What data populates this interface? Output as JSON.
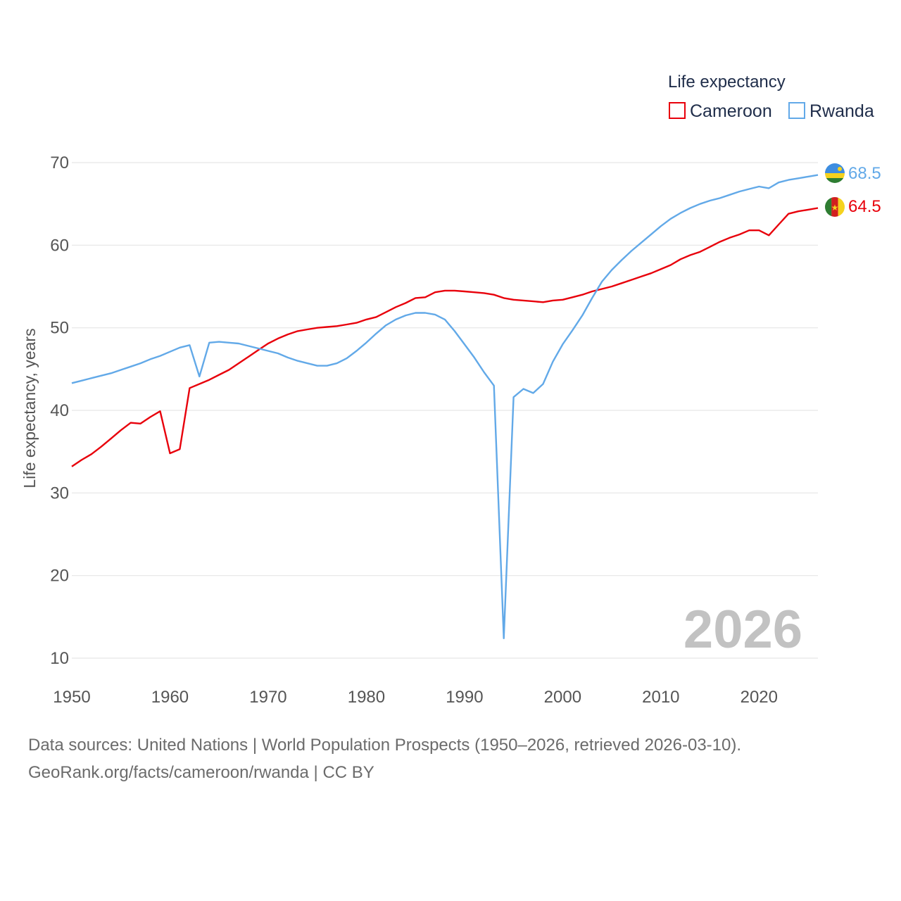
{
  "chart_data": {
    "type": "line",
    "title": "",
    "xlabel": "",
    "ylabel": "Life expectancy, years",
    "xlim": [
      1950,
      2026
    ],
    "ylim": [
      10,
      72
    ],
    "x_ticks": [
      1950,
      1960,
      1970,
      1980,
      1990,
      2000,
      2010,
      2020
    ],
    "y_ticks": [
      10,
      20,
      30,
      40,
      50,
      60,
      70
    ],
    "grid": true,
    "legend": {
      "title": "Life expectancy",
      "position": "top-right",
      "entries": [
        "Cameroon",
        "Rwanda"
      ]
    },
    "current_year": "2026",
    "series": [
      {
        "name": "Cameroon",
        "color": "#e8000b",
        "end_label": "64.5",
        "flag": "cameroon-flag",
        "points": [
          [
            1950,
            33.2
          ],
          [
            1951,
            34.0
          ],
          [
            1952,
            34.7
          ],
          [
            1953,
            35.6
          ],
          [
            1954,
            36.6
          ],
          [
            1955,
            37.6
          ],
          [
            1956,
            38.5
          ],
          [
            1957,
            38.4
          ],
          [
            1958,
            39.2
          ],
          [
            1959,
            39.9
          ],
          [
            1960,
            34.8
          ],
          [
            1961,
            35.3
          ],
          [
            1962,
            42.7
          ],
          [
            1963,
            43.2
          ],
          [
            1964,
            43.7
          ],
          [
            1965,
            44.3
          ],
          [
            1966,
            44.9
          ],
          [
            1967,
            45.7
          ],
          [
            1968,
            46.5
          ],
          [
            1969,
            47.3
          ],
          [
            1970,
            48.1
          ],
          [
            1971,
            48.7
          ],
          [
            1972,
            49.2
          ],
          [
            1973,
            49.6
          ],
          [
            1974,
            49.8
          ],
          [
            1975,
            50.0
          ],
          [
            1976,
            50.1
          ],
          [
            1977,
            50.2
          ],
          [
            1978,
            50.4
          ],
          [
            1979,
            50.6
          ],
          [
            1980,
            51.0
          ],
          [
            1981,
            51.3
          ],
          [
            1982,
            51.9
          ],
          [
            1983,
            52.5
          ],
          [
            1984,
            53.0
          ],
          [
            1985,
            53.6
          ],
          [
            1986,
            53.7
          ],
          [
            1987,
            54.3
          ],
          [
            1988,
            54.5
          ],
          [
            1989,
            54.5
          ],
          [
            1990,
            54.4
          ],
          [
            1991,
            54.3
          ],
          [
            1992,
            54.2
          ],
          [
            1993,
            54.0
          ],
          [
            1994,
            53.6
          ],
          [
            1995,
            53.4
          ],
          [
            1996,
            53.3
          ],
          [
            1997,
            53.2
          ],
          [
            1998,
            53.1
          ],
          [
            1999,
            53.3
          ],
          [
            2000,
            53.4
          ],
          [
            2001,
            53.7
          ],
          [
            2002,
            54.0
          ],
          [
            2003,
            54.4
          ],
          [
            2004,
            54.7
          ],
          [
            2005,
            55.0
          ],
          [
            2006,
            55.4
          ],
          [
            2007,
            55.8
          ],
          [
            2008,
            56.2
          ],
          [
            2009,
            56.6
          ],
          [
            2010,
            57.1
          ],
          [
            2011,
            57.6
          ],
          [
            2012,
            58.3
          ],
          [
            2013,
            58.8
          ],
          [
            2014,
            59.2
          ],
          [
            2015,
            59.8
          ],
          [
            2016,
            60.4
          ],
          [
            2017,
            60.9
          ],
          [
            2018,
            61.3
          ],
          [
            2019,
            61.8
          ],
          [
            2020,
            61.8
          ],
          [
            2021,
            61.2
          ],
          [
            2022,
            62.5
          ],
          [
            2023,
            63.8
          ],
          [
            2024,
            64.1
          ],
          [
            2025,
            64.3
          ],
          [
            2026,
            64.5
          ]
        ]
      },
      {
        "name": "Rwanda",
        "color": "#62a9e8",
        "end_label": "68.5",
        "flag": "rwanda-flag",
        "points": [
          [
            1950,
            43.3
          ],
          [
            1951,
            43.6
          ],
          [
            1952,
            43.9
          ],
          [
            1953,
            44.2
          ],
          [
            1954,
            44.5
          ],
          [
            1955,
            44.9
          ],
          [
            1956,
            45.3
          ],
          [
            1957,
            45.7
          ],
          [
            1958,
            46.2
          ],
          [
            1959,
            46.6
          ],
          [
            1960,
            47.1
          ],
          [
            1961,
            47.6
          ],
          [
            1962,
            47.9
          ],
          [
            1963,
            44.1
          ],
          [
            1964,
            48.2
          ],
          [
            1965,
            48.3
          ],
          [
            1966,
            48.2
          ],
          [
            1967,
            48.1
          ],
          [
            1968,
            47.8
          ],
          [
            1969,
            47.5
          ],
          [
            1970,
            47.2
          ],
          [
            1971,
            46.9
          ],
          [
            1972,
            46.4
          ],
          [
            1973,
            46.0
          ],
          [
            1974,
            45.7
          ],
          [
            1975,
            45.4
          ],
          [
            1976,
            45.4
          ],
          [
            1977,
            45.7
          ],
          [
            1978,
            46.3
          ],
          [
            1979,
            47.2
          ],
          [
            1980,
            48.2
          ],
          [
            1981,
            49.3
          ],
          [
            1982,
            50.3
          ],
          [
            1983,
            51.0
          ],
          [
            1984,
            51.5
          ],
          [
            1985,
            51.8
          ],
          [
            1986,
            51.8
          ],
          [
            1987,
            51.6
          ],
          [
            1988,
            51.0
          ],
          [
            1989,
            49.6
          ],
          [
            1990,
            48.0
          ],
          [
            1991,
            46.4
          ],
          [
            1992,
            44.6
          ],
          [
            1993,
            43.0
          ],
          [
            1994,
            12.4
          ],
          [
            1995,
            41.6
          ],
          [
            1996,
            42.6
          ],
          [
            1997,
            42.1
          ],
          [
            1998,
            43.2
          ],
          [
            1999,
            45.9
          ],
          [
            2000,
            48.0
          ],
          [
            2001,
            49.7
          ],
          [
            2002,
            51.5
          ],
          [
            2003,
            53.6
          ],
          [
            2004,
            55.6
          ],
          [
            2005,
            57.0
          ],
          [
            2006,
            58.2
          ],
          [
            2007,
            59.3
          ],
          [
            2008,
            60.3
          ],
          [
            2009,
            61.3
          ],
          [
            2010,
            62.3
          ],
          [
            2011,
            63.2
          ],
          [
            2012,
            63.9
          ],
          [
            2013,
            64.5
          ],
          [
            2014,
            65.0
          ],
          [
            2015,
            65.4
          ],
          [
            2016,
            65.7
          ],
          [
            2017,
            66.1
          ],
          [
            2018,
            66.5
          ],
          [
            2019,
            66.8
          ],
          [
            2020,
            67.1
          ],
          [
            2021,
            66.9
          ],
          [
            2022,
            67.6
          ],
          [
            2023,
            67.9
          ],
          [
            2024,
            68.1
          ],
          [
            2025,
            68.3
          ],
          [
            2026,
            68.5
          ]
        ]
      }
    ]
  },
  "footer": {
    "source": "Data sources: United Nations | World Population Prospects (1950–2026, retrieved 2026-03-10).",
    "credit": "GeoRank.org/facts/cameroon/rwanda | CC BY"
  }
}
